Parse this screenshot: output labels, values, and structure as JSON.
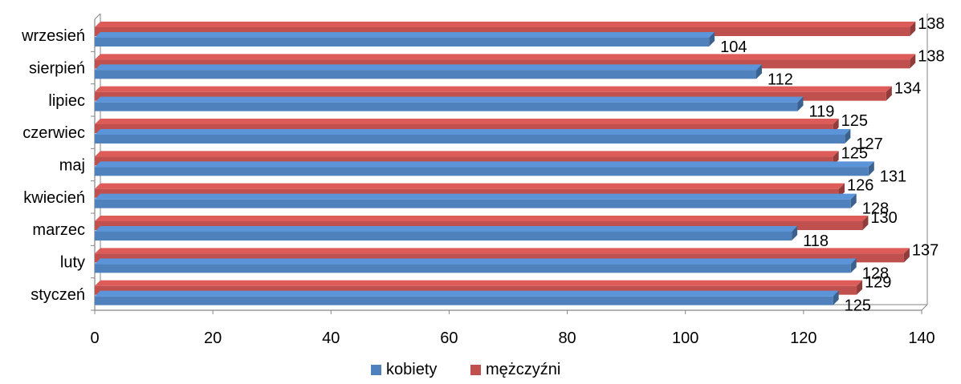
{
  "chart_data": {
    "type": "bar",
    "orientation": "horizontal",
    "categories": [
      "styczeń",
      "luty",
      "marzec",
      "kwiecień",
      "maj",
      "czerwiec",
      "lipiec",
      "sierpień",
      "wrzesień"
    ],
    "series": [
      {
        "name": "kobiety",
        "color": "#4F81BD",
        "values": [
          125,
          128,
          118,
          128,
          131,
          127,
          119,
          112,
          104
        ]
      },
      {
        "name": "mężczyźni",
        "color": "#C0504D",
        "values": [
          129,
          137,
          130,
          126,
          125,
          125,
          134,
          138,
          138
        ]
      }
    ],
    "xticks": [
      "0",
      "20",
      "40",
      "60",
      "80",
      "100",
      "120",
      "140"
    ],
    "xlim": [
      0,
      140
    ],
    "legend_position": "bottom",
    "style": "3d-clustered"
  }
}
